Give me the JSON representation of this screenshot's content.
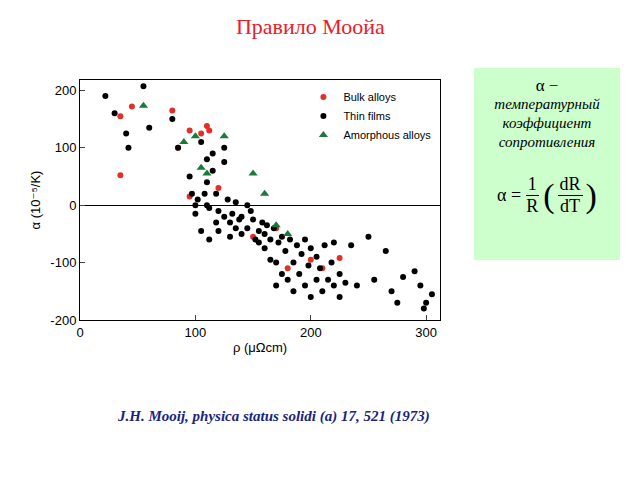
{
  "chart_data": {
    "type": "scatter",
    "title": "Правило Моойа",
    "x_label": "ρ (μΩcm)",
    "y_label": "α (10⁻⁵/K)",
    "xlim": [
      0,
      312
    ],
    "ylim": [
      -200,
      218
    ],
    "xticks": [
      0,
      100,
      200,
      300
    ],
    "yticks": [
      -200,
      -100,
      0,
      100,
      200
    ],
    "grid": false,
    "legend": "top right",
    "series": [
      {
        "name": "Bulk alloys",
        "color": "#e0302a",
        "marker": "circle",
        "x": [
          35,
          35,
          45,
          80,
          85,
          95,
          95,
          105,
          110,
          112,
          120,
          150,
          170,
          180,
          200,
          210,
          225
        ],
        "values": [
          52,
          155,
          172,
          165,
          100,
          130,
          15,
          125,
          138,
          130,
          30,
          -55,
          -40,
          -110,
          -95,
          -110,
          -92
        ]
      },
      {
        "name": "Thin films",
        "color": "#000000",
        "marker": "circle",
        "x": [
          22,
          30,
          40,
          42,
          55,
          60,
          80,
          85,
          95,
          97,
          100,
          100,
          102,
          105,
          110,
          110,
          110,
          112,
          115,
          115,
          118,
          120,
          120,
          125,
          125,
          128,
          130,
          130,
          132,
          135,
          138,
          140,
          140,
          145,
          148,
          150,
          152,
          155,
          158,
          160,
          160,
          162,
          165,
          165,
          168,
          170,
          170,
          172,
          175,
          175,
          178,
          180,
          182,
          185,
          185,
          188,
          190,
          192,
          195,
          195,
          198,
          200,
          200,
          205,
          205,
          208,
          210,
          212,
          215,
          218,
          220,
          220,
          225,
          225,
          230,
          235,
          240,
          250,
          255,
          265,
          270,
          275,
          280,
          290,
          295,
          298,
          305,
          300,
          108,
          135,
          145,
          125,
          118,
          155,
          105,
          112
        ],
        "values": [
          190,
          160,
          125,
          100,
          207,
          135,
          150,
          100,
          50,
          20,
          0,
          -15,
          10,
          110,
          80,
          40,
          0,
          -5,
          90,
          60,
          20,
          -10,
          -45,
          75,
          -20,
          10,
          -30,
          -55,
          -15,
          -40,
          -25,
          -50,
          -20,
          -40,
          -10,
          -25,
          -60,
          -45,
          -30,
          -50,
          -75,
          -35,
          -60,
          -95,
          -40,
          -100,
          -140,
          -65,
          -55,
          -120,
          -80,
          -130,
          -60,
          -100,
          -150,
          -70,
          -120,
          -85,
          -60,
          -140,
          -105,
          -75,
          -160,
          -130,
          -90,
          -110,
          -150,
          -70,
          -130,
          -100,
          -65,
          -140,
          -160,
          -120,
          -135,
          -70,
          -140,
          -55,
          -130,
          -80,
          -150,
          -170,
          -125,
          -115,
          -140,
          -180,
          -155,
          -170,
          20,
          5,
          0,
          100,
          -30,
          -65,
          -45,
          -60
        ]
      },
      {
        "name": "Amorphous alloys",
        "color": "#1a7a3a",
        "marker": "triangle-up",
        "x": [
          55,
          90,
          100,
          105,
          110,
          125,
          150,
          160,
          170,
          180
        ],
        "values": [
          173,
          110,
          120,
          65,
          55,
          120,
          55,
          20,
          -35,
          -50
        ]
      }
    ],
    "annotations": {
      "box_lines": [
        "α −",
        "температурный",
        "коэффициент",
        "сопротивления"
      ],
      "formula": {
        "lhs": "α =",
        "num1": "1",
        "den1": "R",
        "num2": "dR",
        "den2": "dT"
      },
      "citation": "J.H. Mooij, physica status solidi (a) 17, 521 (1973)"
    }
  }
}
